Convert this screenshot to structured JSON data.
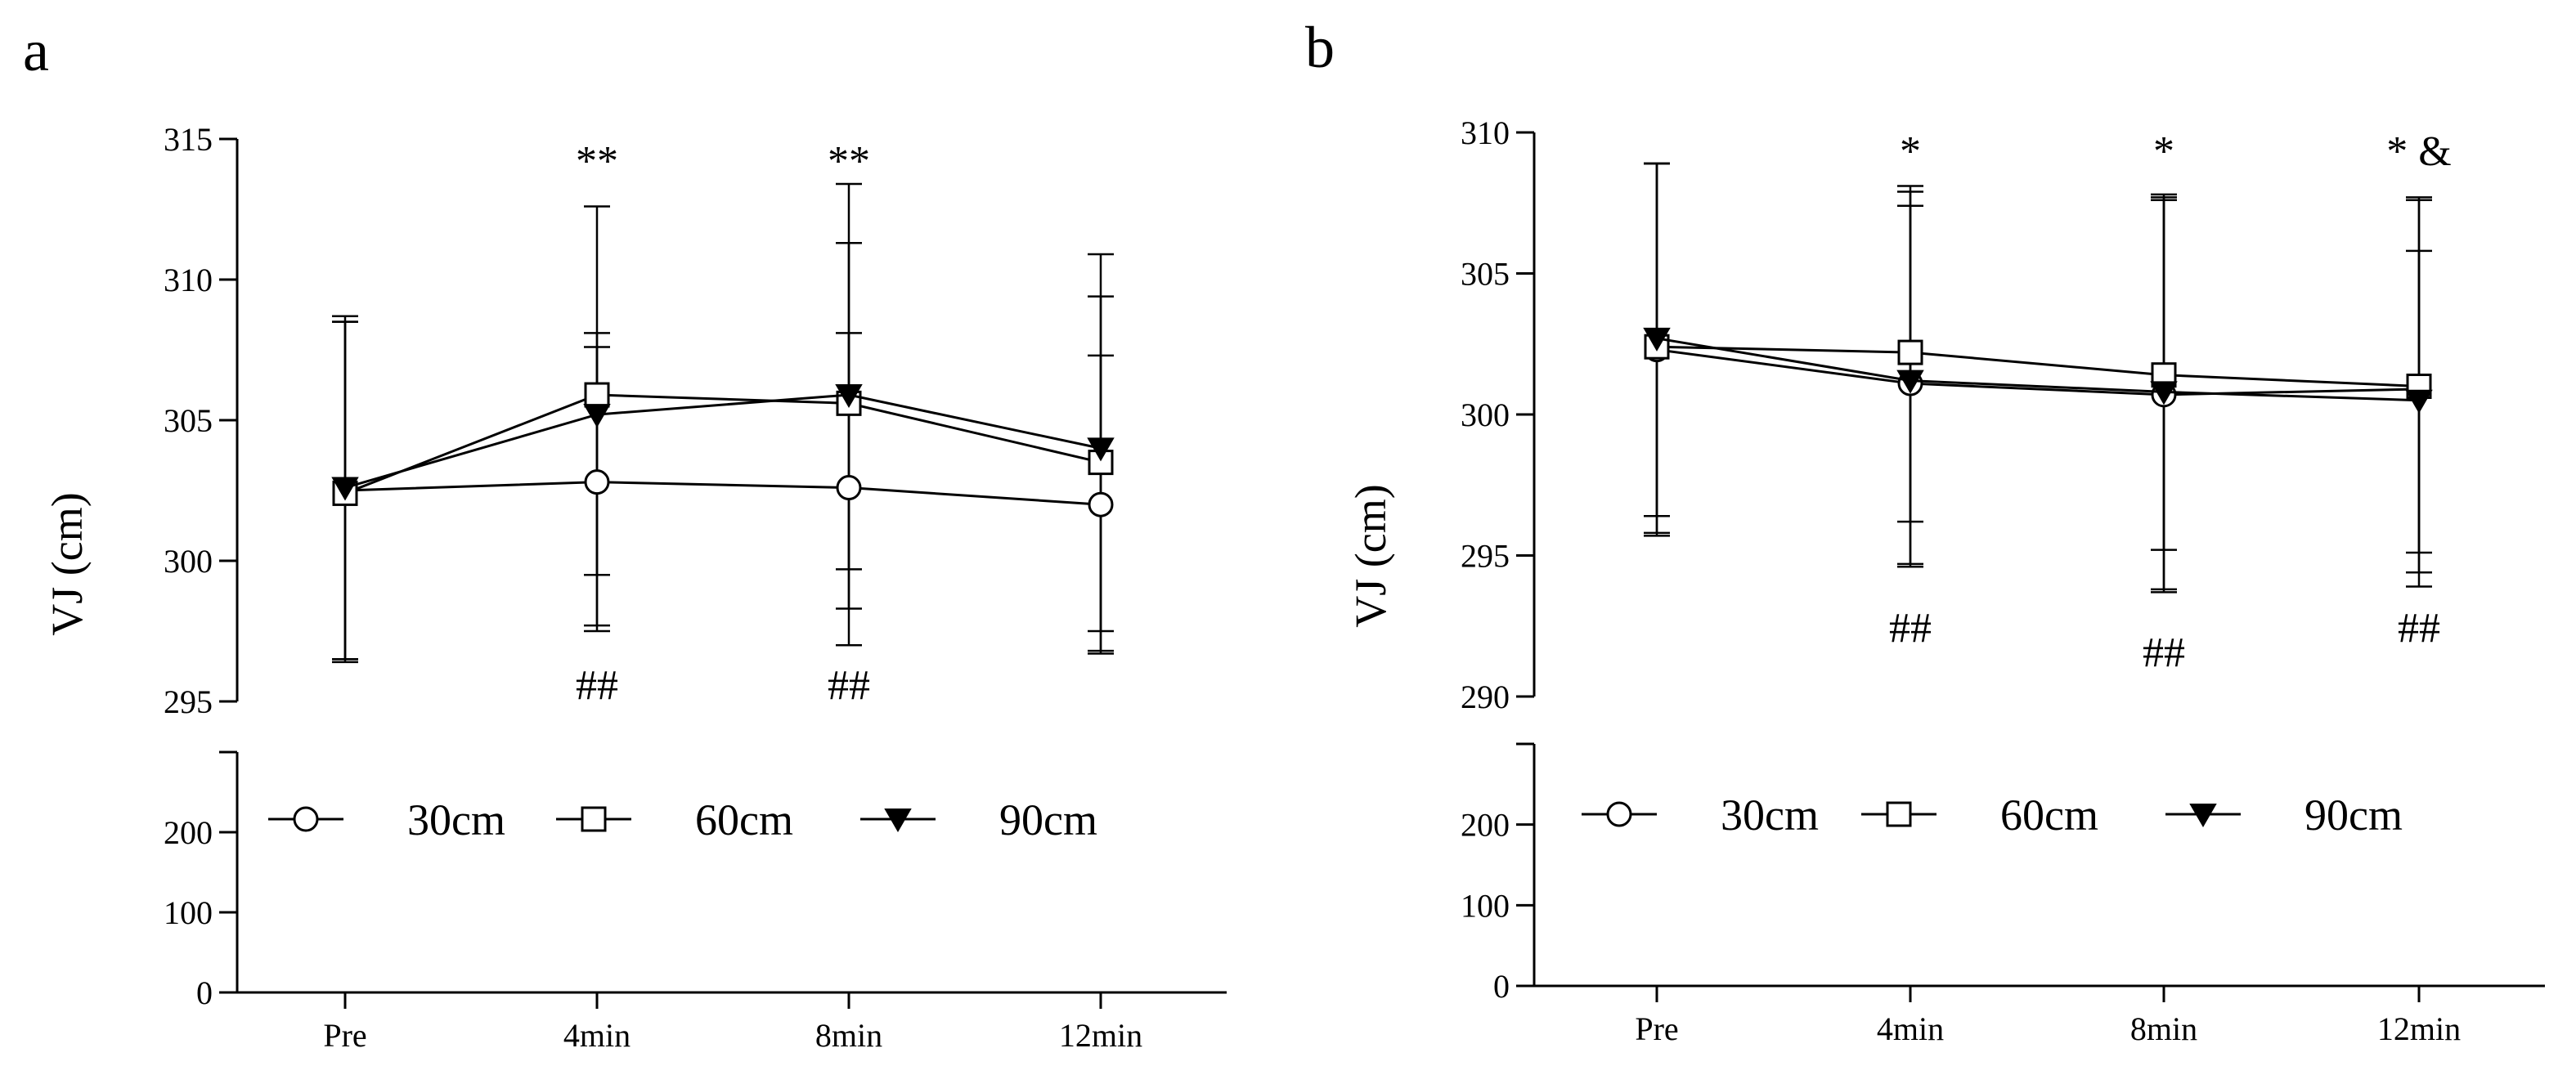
{
  "chart_data": [
    {
      "type": "line",
      "panel_label": "a",
      "ylabel": "VJ (cm)",
      "categories": [
        "Pre",
        "4min",
        "8min",
        "12min"
      ],
      "axis_break": true,
      "upper_ylim": [
        295,
        315
      ],
      "upper_ticks": [
        "295",
        "300",
        "305",
        "310",
        "315"
      ],
      "lower_ylim": [
        0,
        300
      ],
      "lower_ticks": [
        "0",
        "100",
        "200"
      ],
      "legend_position": "lower-segment-top",
      "series": [
        {
          "name": "30cm",
          "marker": "open-circle",
          "values": [
            302.5,
            302.8,
            302.6,
            302.0
          ],
          "err_upper": [
            308.5,
            307.6,
            311.3,
            309.4
          ],
          "err_lower": [
            296.5,
            297.5,
            299.7,
            297.5
          ]
        },
        {
          "name": "60cm",
          "marker": "open-square",
          "values": [
            302.4,
            305.9,
            305.6,
            303.5
          ],
          "err_upper": [
            308.5,
            308.1,
            313.4,
            310.9
          ],
          "err_lower": [
            296.5,
            299.5,
            297.0,
            296.7
          ]
        },
        {
          "name": "90cm",
          "marker": "filled-triangle-down",
          "values": [
            302.6,
            305.2,
            305.9,
            304.0
          ],
          "err_upper": [
            308.7,
            312.6,
            308.1,
            307.3
          ],
          "err_lower": [
            296.4,
            297.7,
            298.3,
            296.8
          ]
        }
      ],
      "annotations_above": [
        "",
        "**",
        "**",
        ""
      ],
      "annotations_below": [
        "",
        "##",
        "##",
        ""
      ]
    },
    {
      "type": "line",
      "panel_label": "b",
      "ylabel": "VJ (cm)",
      "categories": [
        "Pre",
        "4min",
        "8min",
        "12min"
      ],
      "axis_break": true,
      "upper_ylim": [
        290,
        310
      ],
      "upper_ticks": [
        "290",
        "295",
        "300",
        "305",
        "310"
      ],
      "lower_ylim": [
        0,
        300
      ],
      "lower_ticks": [
        "0",
        "100",
        "200"
      ],
      "legend_position": "lower-segment-top",
      "series": [
        {
          "name": "30cm",
          "marker": "open-circle",
          "values": [
            302.3,
            301.1,
            300.7,
            300.9
          ],
          "err_upper": [
            308.9,
            307.4,
            307.6,
            305.8
          ],
          "err_lower": [
            295.7,
            294.7,
            293.8,
            295.1
          ]
        },
        {
          "name": "60cm",
          "marker": "open-square",
          "values": [
            302.4,
            302.2,
            301.4,
            301.0
          ],
          "err_upper": [
            308.9,
            308.1,
            307.7,
            307.6
          ],
          "err_lower": [
            295.8,
            296.2,
            295.2,
            294.4
          ]
        },
        {
          "name": "90cm",
          "marker": "filled-triangle-down",
          "values": [
            302.7,
            301.2,
            300.8,
            300.5
          ],
          "err_upper": [
            308.9,
            307.9,
            307.8,
            307.7
          ],
          "err_lower": [
            296.4,
            294.6,
            293.7,
            293.9
          ]
        }
      ],
      "annotations_above": [
        "",
        "*",
        "*",
        "* &"
      ],
      "annotations_below": [
        "",
        "##",
        "##",
        "##"
      ]
    }
  ]
}
